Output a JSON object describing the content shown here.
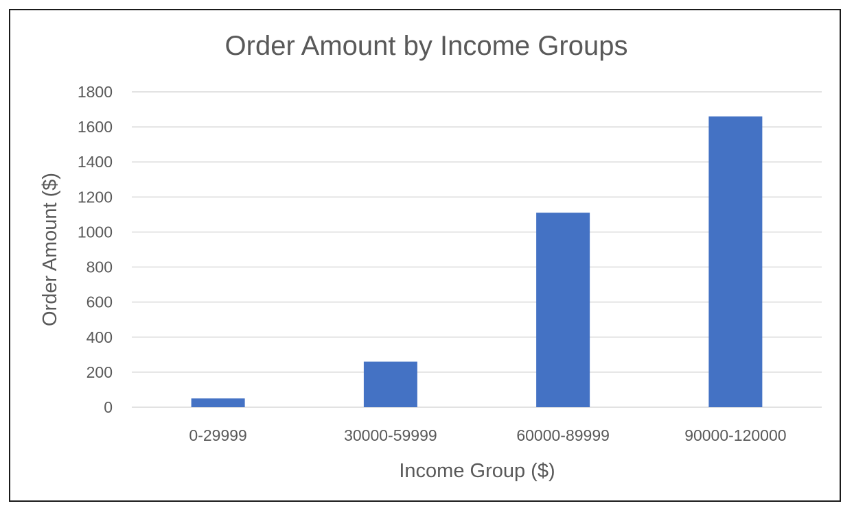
{
  "chart_data": {
    "type": "bar",
    "title": "Order Amount by Income Groups",
    "xlabel": "Income Group ($)",
    "ylabel": "Order Amount ($)",
    "categories": [
      "0-29999",
      "30000-59999",
      "60000-89999",
      "90000-120000"
    ],
    "values": [
      50,
      260,
      1110,
      1660
    ],
    "ylim": [
      0,
      1800
    ],
    "yticks": [
      0,
      200,
      400,
      600,
      800,
      1000,
      1200,
      1400,
      1600,
      1800
    ],
    "grid": true,
    "legend": "none",
    "bar_color": "#4472C4"
  }
}
